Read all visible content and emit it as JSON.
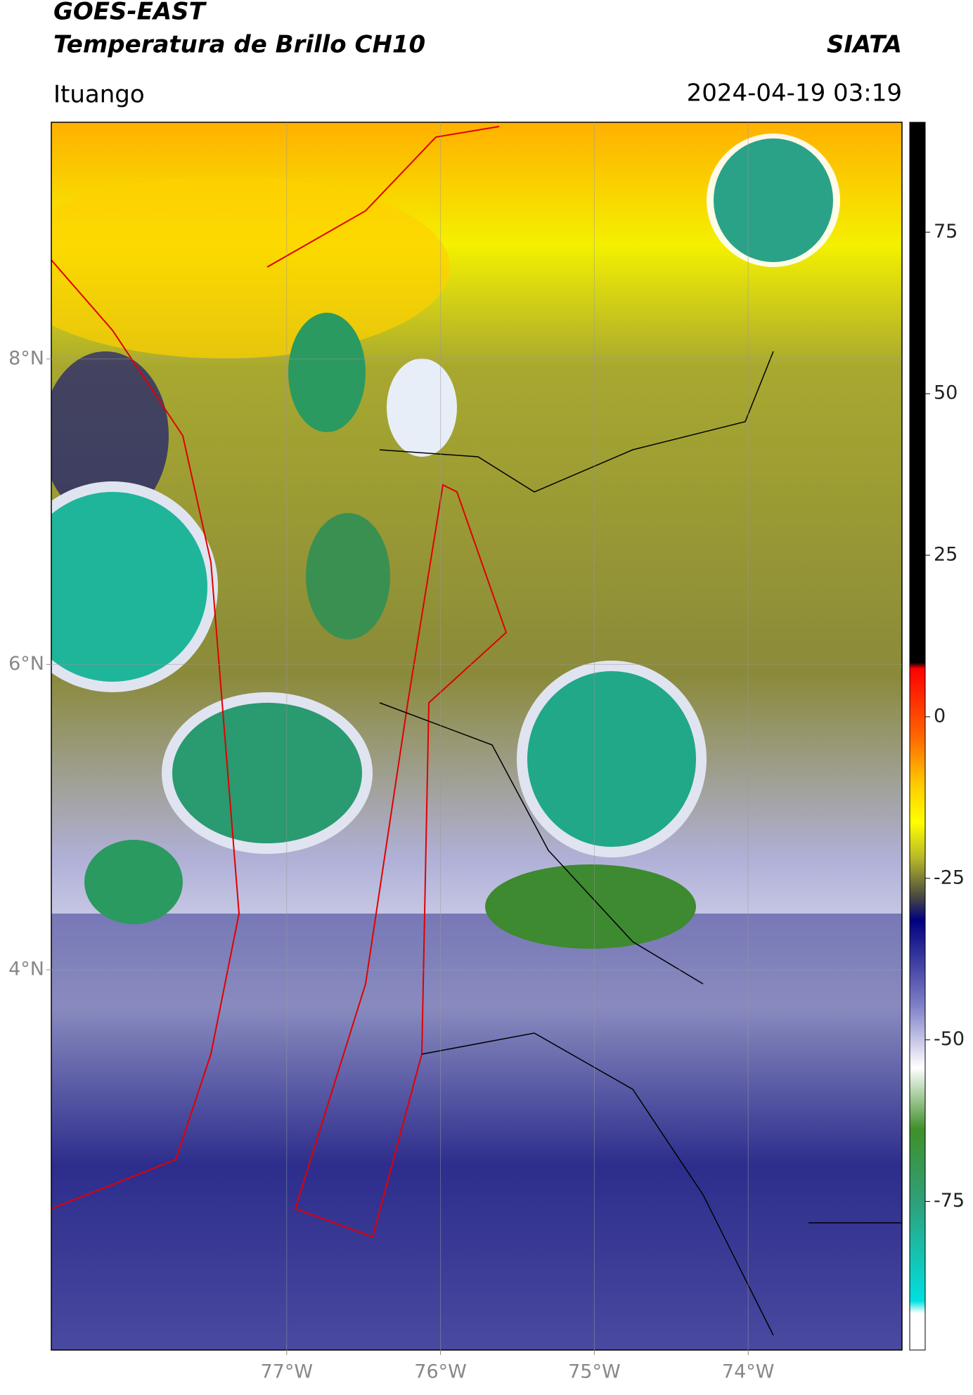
{
  "header": {
    "title": "GOES-EAST",
    "subtitle": "Temperatura de Brillo CH10",
    "source": "SIATA",
    "location": "Ituango",
    "datetime": "2024-04-19 03:19"
  },
  "map": {
    "xlim": [
      -78.53,
      -73.0
    ],
    "ylim": [
      1.51,
      9.55
    ],
    "xticks": [
      {
        "value": -77,
        "label": "77°W"
      },
      {
        "value": -76,
        "label": "76°W"
      },
      {
        "value": -75,
        "label": "75°W"
      },
      {
        "value": -74,
        "label": "74°W"
      }
    ],
    "yticks": [
      {
        "value": 8,
        "label": "8°N"
      },
      {
        "value": 6,
        "label": "6°N"
      },
      {
        "value": 4,
        "label": "4°N"
      }
    ],
    "grid": true
  },
  "colorbar": {
    "lim": [
      -98,
      92
    ],
    "ticks": [
      75,
      50,
      25,
      0,
      -25,
      -50,
      -75
    ]
  }
}
